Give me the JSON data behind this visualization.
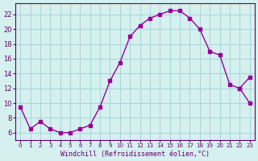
{
  "hours": [
    0,
    1,
    2,
    3,
    4,
    5,
    6,
    7,
    8,
    9,
    10,
    11,
    12,
    13,
    14,
    15,
    16,
    17,
    18,
    19,
    20,
    21,
    22,
    23
  ],
  "values": [
    9.5,
    6.5,
    7.5,
    6.5,
    6.0,
    6.0,
    6.5,
    7.0,
    9.5,
    13.0,
    15.5,
    19.0,
    20.5,
    21.5,
    22.0,
    22.5,
    22.5,
    21.5,
    20.0,
    17.0,
    16.5,
    12.5,
    12.0,
    10.0
  ],
  "extra_hours": [
    22,
    23
  ],
  "extra_values": [
    12.0,
    13.5
  ],
  "line_color": "#990099",
  "marker_color": "#990099",
  "bg_color": "#d6f0f0",
  "grid_color": "#aad8d8",
  "xlabel": "Windchill (Refroidissement éolien,°C)",
  "ylim": [
    5,
    23.5
  ],
  "xlim": [
    -0.5,
    23.5
  ],
  "yticks": [
    6,
    8,
    10,
    12,
    14,
    16,
    18,
    20,
    22
  ],
  "xtick_labels": [
    "0",
    "1",
    "2",
    "3",
    "4",
    "5",
    "6",
    "7",
    "8",
    "9",
    "10",
    "11",
    "12",
    "13",
    "14",
    "15",
    "16",
    "17",
    "18",
    "19",
    "20",
    "21",
    "22",
    "23"
  ],
  "title_color": "#660066",
  "axis_color": "#660066",
  "tick_color": "#660066"
}
